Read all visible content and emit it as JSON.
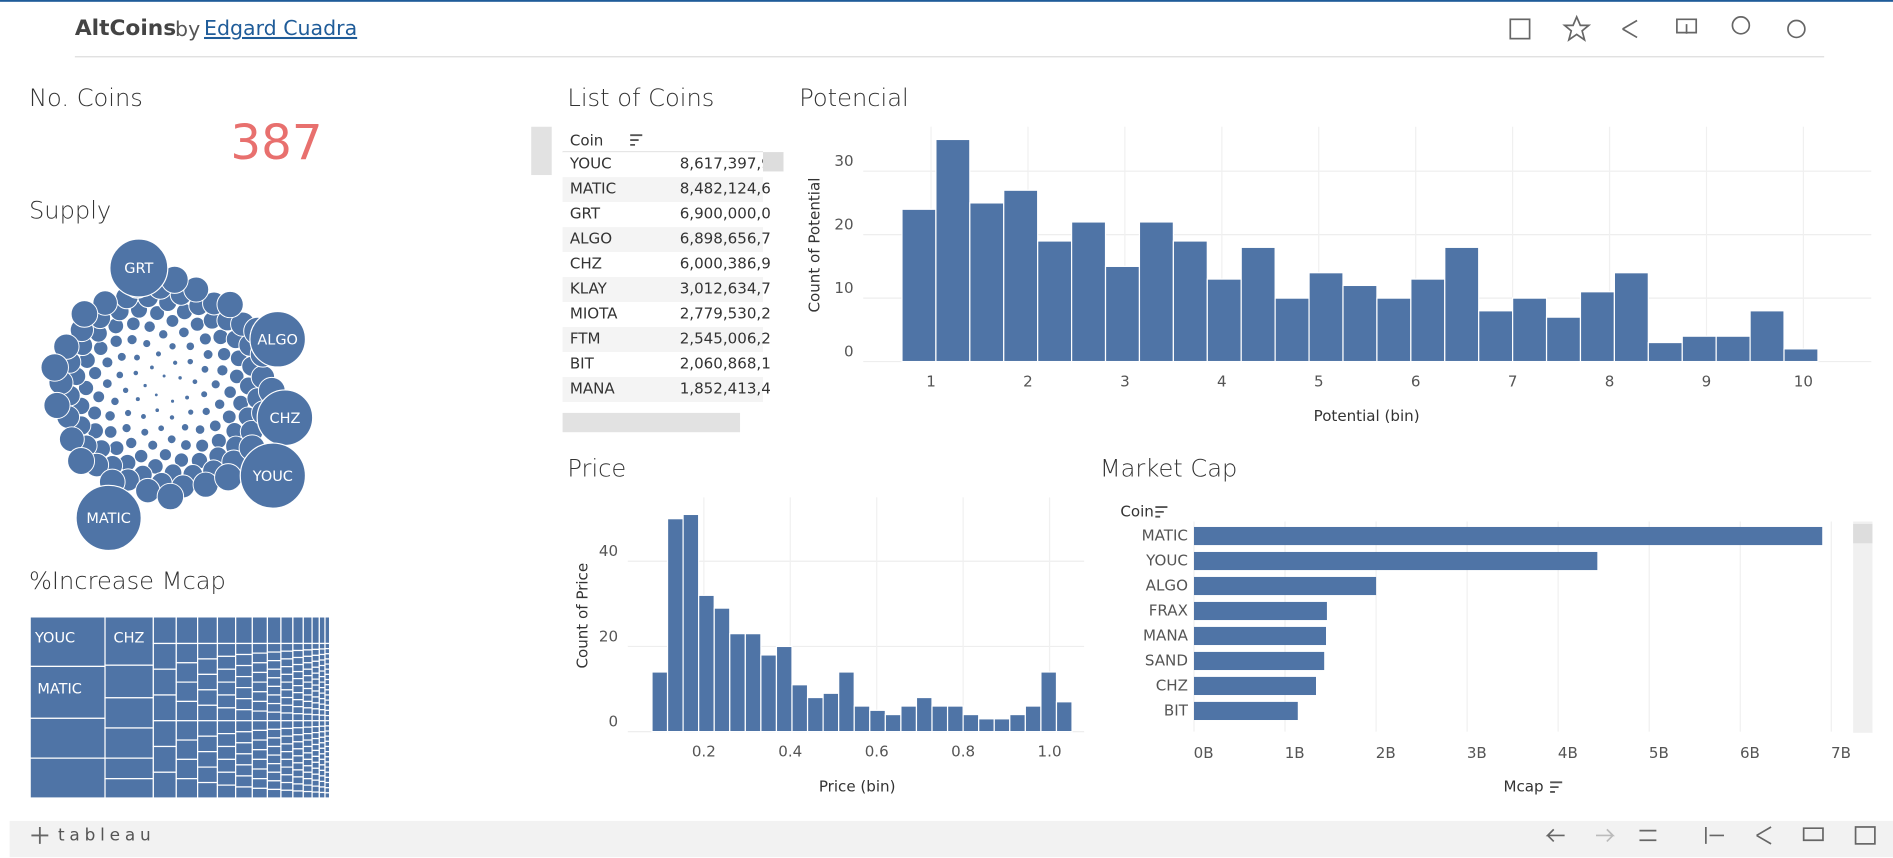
{
  "header": {
    "title": "AltCoins",
    "by": "by",
    "author": "Edgard Cuadra"
  },
  "coins_count": {
    "title": "No. Coins",
    "value": 387
  },
  "supply": {
    "title": "Supply",
    "labels": [
      "GRT",
      "ALGO",
      "CHZ",
      "YOUC",
      "MATIC"
    ]
  },
  "treemap": {
    "title": "%Increase Mcap",
    "labels": [
      "YOUC",
      "CHZ",
      "MATIC"
    ]
  },
  "coin_list": {
    "title": "List of Coins",
    "header": "Coin",
    "rows": [
      [
        "YOUC",
        "8,617,397,9"
      ],
      [
        "MATIC",
        "8,482,124,6"
      ],
      [
        "GRT",
        "6,900,000,0"
      ],
      [
        "ALGO",
        "6,898,656,7"
      ],
      [
        "CHZ",
        "6,000,386,9"
      ],
      [
        "KLAY",
        "3,012,634,7"
      ],
      [
        "MIOTA",
        "2,779,530,2"
      ],
      [
        "FTM",
        "2,545,006,2"
      ],
      [
        "BIT",
        "2,060,868,1"
      ],
      [
        "MANA",
        "1,852,413,4"
      ]
    ]
  },
  "chart_data": [
    {
      "type": "histogram",
      "title": "Potencial",
      "x_label": "Potential (bin)",
      "y_label": "Count of Potential",
      "bins": [
        0.7,
        1.05,
        1.4,
        1.75,
        2.1,
        2.45,
        2.8,
        3.15,
        3.5,
        3.85,
        4.2,
        4.55,
        4.9,
        5.25,
        5.6,
        5.95,
        6.3,
        6.65,
        7.0,
        7.35,
        7.7,
        8.05,
        8.4,
        8.75,
        9.1,
        9.45,
        9.8,
        10.15
      ],
      "values": [
        24,
        35,
        25,
        27,
        19,
        22,
        15,
        22,
        19,
        13,
        18,
        10,
        14,
        12,
        10,
        13,
        18,
        8,
        10,
        7,
        11,
        14,
        3,
        4,
        4,
        8,
        2
      ],
      "color": "#4f74a6",
      "xlim": [
        0.3,
        10.7
      ],
      "ylim": [
        0,
        37
      ],
      "xticks": [
        1,
        2,
        3,
        4,
        5,
        6,
        7,
        8,
        9,
        10
      ],
      "yticks": [
        0,
        10,
        20,
        30
      ],
      "grid": true
    },
    {
      "type": "histogram",
      "title": "Price",
      "x_label": "Price (bin)",
      "y_label": "Count of Price",
      "bins": [
        0.08,
        0.116,
        0.152,
        0.188,
        0.224,
        0.26,
        0.296,
        0.332,
        0.368,
        0.404,
        0.44,
        0.476,
        0.512,
        0.548,
        0.584,
        0.62,
        0.656,
        0.692,
        0.728,
        0.764,
        0.8,
        0.836,
        0.872,
        0.908,
        0.944,
        0.98,
        1.016,
        1.052
      ],
      "values": [
        14,
        50,
        51,
        32,
        29,
        23,
        23,
        18,
        20,
        11,
        8,
        9,
        14,
        6,
        5,
        4,
        6,
        8,
        6,
        6,
        4,
        3,
        3,
        4,
        6,
        14,
        7
      ],
      "color": "#4f74a6",
      "xlim": [
        0.024,
        1.08
      ],
      "ylim": [
        0,
        55
      ],
      "xticks": [
        0.2,
        0.4,
        0.6,
        0.8,
        {
          "value": 1,
          "label": "1.0"
        }
      ],
      "yticks": [
        0,
        20,
        40
      ],
      "grid": true
    },
    {
      "type": "hbar",
      "title": "Market Cap",
      "x_label": "Mcap",
      "y_label": "Coin",
      "categories": [
        "MATIC",
        "YOUC",
        "ALGO",
        "FRAX",
        "MANA",
        "SAND",
        "CHZ",
        "BIT"
      ],
      "values": [
        6900000000,
        4430000000,
        2000000000,
        1460000000,
        1450000000,
        1430000000,
        1340000000,
        1140000000
      ],
      "color": "#4f74a6",
      "xlim": [
        0,
        7200000000
      ],
      "xticks": [
        {
          "value": 0,
          "label": "0B"
        },
        {
          "value": 1000000000,
          "label": "1B"
        },
        {
          "value": 2000000000,
          "label": "2B"
        },
        {
          "value": 3000000000,
          "label": "3B"
        },
        {
          "value": 4000000000,
          "label": "4B"
        },
        {
          "value": 5000000000,
          "label": "5B"
        },
        {
          "value": 6000000000,
          "label": "6B"
        },
        {
          "value": 7000000000,
          "label": "7B"
        }
      ],
      "grid": true
    }
  ],
  "footer": {
    "logo": "tableau"
  }
}
